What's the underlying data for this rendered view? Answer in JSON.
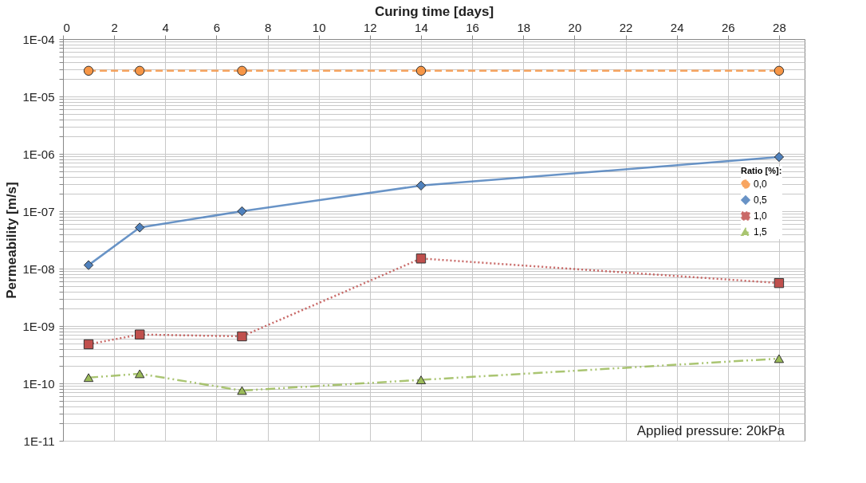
{
  "chart_data": {
    "type": "line",
    "xlabel": "Curing time [days]",
    "ylabel": "Permeability [m/s]",
    "legend_title": "Ratio [%]:",
    "x": [
      1,
      3,
      7,
      14,
      28
    ],
    "series": [
      {
        "name": "0,0",
        "color": "#f79646",
        "marker": "circle",
        "line_style": "dashed",
        "values": [
          2.8e-05,
          2.8e-05,
          2.8e-05,
          2.8e-05,
          2.8e-05
        ]
      },
      {
        "name": "0,5",
        "color": "#4f81bd",
        "marker": "diamond",
        "line_style": "solid",
        "values": [
          1.15e-08,
          5.2e-08,
          1e-07,
          2.8e-07,
          8.8e-07
        ]
      },
      {
        "name": "1,0",
        "color": "#c0504d",
        "marker": "square",
        "line_style": "dotted",
        "values": [
          4.8e-10,
          7.1e-10,
          6.6e-10,
          1.5e-08,
          5.6e-09
        ]
      },
      {
        "name": "1,5",
        "color": "#9bbb59",
        "marker": "triangle",
        "line_style": "dashdot",
        "values": [
          1.26e-10,
          1.47e-10,
          7.5e-11,
          1.15e-10,
          2.7e-10
        ]
      }
    ],
    "log": "y",
    "xlim": [
      0,
      29
    ],
    "xticks": [
      0,
      2,
      4,
      6,
      8,
      10,
      12,
      14,
      16,
      18,
      20,
      22,
      24,
      26,
      28
    ],
    "ylim": [
      1e-11,
      0.0001
    ],
    "yticks": [
      {
        "value": 1e-11,
        "label": "1E-11"
      },
      {
        "value": 2e-11,
        "label": null
      },
      {
        "value": 3e-11,
        "label": null
      },
      {
        "value": 4e-11,
        "label": null
      },
      {
        "value": 5e-11,
        "label": null
      },
      {
        "value": 6e-11,
        "label": null
      },
      {
        "value": 7e-11,
        "label": null
      },
      {
        "value": 8e-11,
        "label": null
      },
      {
        "value": 9e-11,
        "label": null
      },
      {
        "value": 1e-10,
        "label": "1E-10"
      },
      {
        "value": 2e-10,
        "label": null
      },
      {
        "value": 3e-10,
        "label": null
      },
      {
        "value": 4e-10,
        "label": null
      },
      {
        "value": 5e-10,
        "label": null
      },
      {
        "value": 6e-10,
        "label": null
      },
      {
        "value": 7e-10,
        "label": null
      },
      {
        "value": 8e-10,
        "label": null
      },
      {
        "value": 9e-10,
        "label": null
      },
      {
        "value": 1e-09,
        "label": "1E-09"
      },
      {
        "value": 2e-09,
        "label": null
      },
      {
        "value": 3e-09,
        "label": null
      },
      {
        "value": 4e-09,
        "label": null
      },
      {
        "value": 5e-09,
        "label": null
      },
      {
        "value": 6e-09,
        "label": null
      },
      {
        "value": 7e-09,
        "label": null
      },
      {
        "value": 8e-09,
        "label": null
      },
      {
        "value": 9e-09,
        "label": null
      },
      {
        "value": 1e-08,
        "label": "1E-08"
      },
      {
        "value": 2e-08,
        "label": null
      },
      {
        "value": 3e-08,
        "label": null
      },
      {
        "value": 4e-08,
        "label": null
      },
      {
        "value": 5e-08,
        "label": null
      },
      {
        "value": 6e-08,
        "label": null
      },
      {
        "value": 7e-08,
        "label": null
      },
      {
        "value": 8e-08,
        "label": null
      },
      {
        "value": 9e-08,
        "label": null
      },
      {
        "value": 1e-07,
        "label": "1E-07"
      },
      {
        "value": 2e-07,
        "label": null
      },
      {
        "value": 3e-07,
        "label": null
      },
      {
        "value": 4e-07,
        "label": null
      },
      {
        "value": 5e-07,
        "label": null
      },
      {
        "value": 6e-07,
        "label": null
      },
      {
        "value": 7e-07,
        "label": null
      },
      {
        "value": 8e-07,
        "label": null
      },
      {
        "value": 9e-07,
        "label": null
      },
      {
        "value": 1e-06,
        "label": "1E-06"
      },
      {
        "value": 2e-06,
        "label": null
      },
      {
        "value": 3e-06,
        "label": null
      },
      {
        "value": 4e-06,
        "label": null
      },
      {
        "value": 5e-06,
        "label": null
      },
      {
        "value": 6e-06,
        "label": null
      },
      {
        "value": 7e-06,
        "label": null
      },
      {
        "value": 8e-06,
        "label": null
      },
      {
        "value": 9e-06,
        "label": null
      },
      {
        "value": 1e-05,
        "label": "1E-05"
      },
      {
        "value": 2e-05,
        "label": null
      },
      {
        "value": 3e-05,
        "label": null
      },
      {
        "value": 4e-05,
        "label": null
      },
      {
        "value": 5e-05,
        "label": null
      },
      {
        "value": 6e-05,
        "label": null
      },
      {
        "value": 7e-05,
        "label": null
      },
      {
        "value": 8e-05,
        "label": null
      },
      {
        "value": 9e-05,
        "label": null
      },
      {
        "value": 0.0001,
        "label": "1E-04"
      }
    ],
    "grid": true,
    "legend": "right",
    "annotations": [
      "Applied pressure: 20kPa"
    ]
  }
}
